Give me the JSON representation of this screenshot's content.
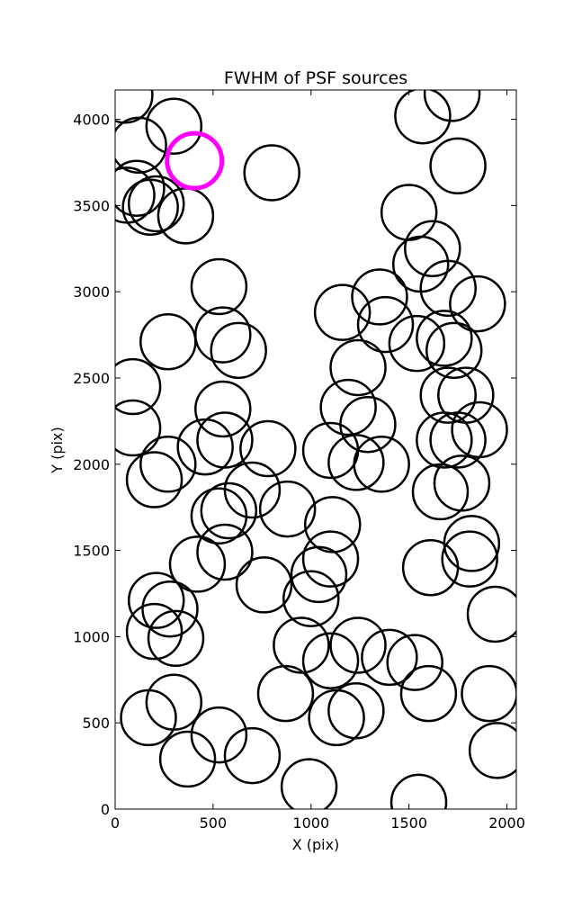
{
  "chart_data": {
    "type": "scatter",
    "title": "FWHM of PSF sources",
    "xlabel": "X (pix)",
    "ylabel": "Y (pix)",
    "xlim": [
      0,
      2048
    ],
    "ylim": [
      0,
      4170
    ],
    "xticks": [
      0,
      500,
      1000,
      1500,
      2000
    ],
    "yticks": [
      0,
      500,
      1000,
      1500,
      2000,
      2500,
      3000,
      3500,
      4000
    ],
    "grid": false,
    "marker": "open-circle",
    "fwhm_marker_radius_data_units": 140,
    "colors": {
      "source": "#000000",
      "highlight": "#ff00ff"
    },
    "highlighted_source": {
      "x": 405,
      "y": 3760
    },
    "sources": [
      {
        "x": 50,
        "y": 4140
      },
      {
        "x": 300,
        "y": 3960
      },
      {
        "x": 120,
        "y": 3850
      },
      {
        "x": 110,
        "y": 3600
      },
      {
        "x": 60,
        "y": 3560
      },
      {
        "x": 210,
        "y": 3510
      },
      {
        "x": 180,
        "y": 3490
      },
      {
        "x": 360,
        "y": 3440
      },
      {
        "x": 800,
        "y": 3690
      },
      {
        "x": 1570,
        "y": 4020
      },
      {
        "x": 1720,
        "y": 4150
      },
      {
        "x": 1750,
        "y": 3730
      },
      {
        "x": 1500,
        "y": 3460
      },
      {
        "x": 1620,
        "y": 3250
      },
      {
        "x": 1560,
        "y": 3160
      },
      {
        "x": 1700,
        "y": 3020
      },
      {
        "x": 1850,
        "y": 2930
      },
      {
        "x": 530,
        "y": 3030
      },
      {
        "x": 1350,
        "y": 2970
      },
      {
        "x": 1160,
        "y": 2880
      },
      {
        "x": 1380,
        "y": 2810
      },
      {
        "x": 1540,
        "y": 2700
      },
      {
        "x": 1680,
        "y": 2730
      },
      {
        "x": 1730,
        "y": 2660
      },
      {
        "x": 270,
        "y": 2710
      },
      {
        "x": 550,
        "y": 2750
      },
      {
        "x": 630,
        "y": 2660
      },
      {
        "x": 1240,
        "y": 2560
      },
      {
        "x": 90,
        "y": 2450
      },
      {
        "x": 1700,
        "y": 2400
      },
      {
        "x": 1790,
        "y": 2400
      },
      {
        "x": 1190,
        "y": 2330
      },
      {
        "x": 550,
        "y": 2320
      },
      {
        "x": 1290,
        "y": 2230
      },
      {
        "x": 90,
        "y": 2210
      },
      {
        "x": 1860,
        "y": 2200
      },
      {
        "x": 1680,
        "y": 2140
      },
      {
        "x": 1750,
        "y": 2140
      },
      {
        "x": 560,
        "y": 2140
      },
      {
        "x": 460,
        "y": 2100
      },
      {
        "x": 780,
        "y": 2090
      },
      {
        "x": 1100,
        "y": 2080
      },
      {
        "x": 1230,
        "y": 2010
      },
      {
        "x": 1360,
        "y": 2000
      },
      {
        "x": 270,
        "y": 2000
      },
      {
        "x": 200,
        "y": 1910
      },
      {
        "x": 1660,
        "y": 1840
      },
      {
        "x": 1770,
        "y": 1890
      },
      {
        "x": 700,
        "y": 1850
      },
      {
        "x": 880,
        "y": 1740
      },
      {
        "x": 580,
        "y": 1730
      },
      {
        "x": 530,
        "y": 1700
      },
      {
        "x": 1110,
        "y": 1650
      },
      {
        "x": 1820,
        "y": 1540
      },
      {
        "x": 1810,
        "y": 1450
      },
      {
        "x": 560,
        "y": 1490
      },
      {
        "x": 1100,
        "y": 1450
      },
      {
        "x": 1040,
        "y": 1360
      },
      {
        "x": 420,
        "y": 1420
      },
      {
        "x": 1610,
        "y": 1400
      },
      {
        "x": 760,
        "y": 1300
      },
      {
        "x": 1000,
        "y": 1220
      },
      {
        "x": 210,
        "y": 1210
      },
      {
        "x": 280,
        "y": 1160
      },
      {
        "x": 1940,
        "y": 1130
      },
      {
        "x": 200,
        "y": 1030
      },
      {
        "x": 310,
        "y": 990
      },
      {
        "x": 950,
        "y": 950
      },
      {
        "x": 1240,
        "y": 950
      },
      {
        "x": 1400,
        "y": 880
      },
      {
        "x": 1530,
        "y": 850
      },
      {
        "x": 1100,
        "y": 860
      },
      {
        "x": 1600,
        "y": 670
      },
      {
        "x": 870,
        "y": 670
      },
      {
        "x": 1910,
        "y": 670
      },
      {
        "x": 300,
        "y": 620
      },
      {
        "x": 170,
        "y": 530
      },
      {
        "x": 1130,
        "y": 530
      },
      {
        "x": 1230,
        "y": 570
      },
      {
        "x": 530,
        "y": 430
      },
      {
        "x": 700,
        "y": 310
      },
      {
        "x": 370,
        "y": 290
      },
      {
        "x": 1950,
        "y": 340
      },
      {
        "x": 990,
        "y": 130
      },
      {
        "x": 1550,
        "y": 40
      }
    ]
  }
}
